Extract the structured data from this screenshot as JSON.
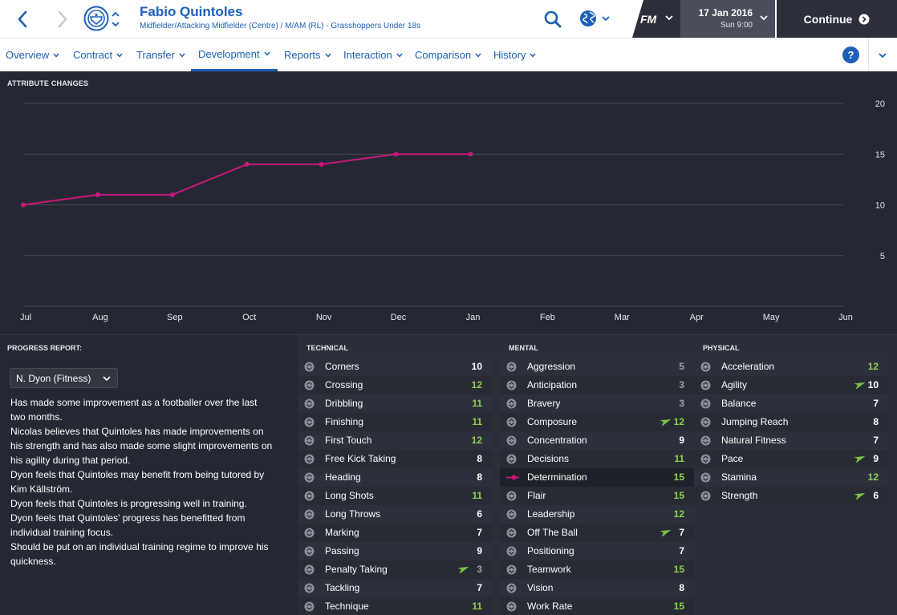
{
  "header": {
    "player_name": "Fabio Quintoles",
    "player_subtitle": "Midfielder/Attacking Midfielder (Centre) / M/AM (RL) - Grasshoppers Under 18s",
    "date": "17 Jan 2016",
    "time": "Sun 9:00",
    "fm_logo": "FM",
    "continue_label": "Continue"
  },
  "tabs": [
    {
      "label": "Overview"
    },
    {
      "label": "Contract"
    },
    {
      "label": "Transfer"
    },
    {
      "label": "Development"
    },
    {
      "label": "Reports"
    },
    {
      "label": "Interaction"
    },
    {
      "label": "Comparison"
    },
    {
      "label": "History"
    }
  ],
  "active_tab": "Development",
  "help_label": "?",
  "colors": {
    "accent": "#1d5fb8",
    "series": "#c8187c",
    "value_green": "#8fd14f",
    "value_white": "#ffffff",
    "value_gray": "#9ea3ad",
    "trend_up": "#7cc544"
  },
  "chart_data": {
    "type": "line",
    "title": "ATTRIBUTE CHANGES",
    "x": [
      "Jul",
      "Aug",
      "Sep",
      "Oct",
      "Nov",
      "Dec",
      "Jan",
      "Feb",
      "Mar",
      "Apr",
      "May",
      "Jun"
    ],
    "series": [
      {
        "values": [
          10,
          11,
          11,
          14,
          14,
          15,
          15,
          null,
          null,
          null,
          null,
          null
        ]
      }
    ],
    "yticks": [
      5,
      10,
      15,
      20
    ],
    "ylim": [
      0,
      20
    ],
    "grid": true
  },
  "progress": {
    "title": "PROGRESS REPORT:",
    "coach": "N. Dyon (Fitness)",
    "lines": [
      "Has made some improvement as a footballer over the last",
      "two months.",
      "Nicolas believes that Quintoles has made improvements on",
      "his strength and has also made some slight improvements on",
      "his agility during that period.",
      "Dyon feels that Quintoles may benefit from being tutored by",
      "Kim Källström.",
      "Dyon feels that Quintoles is progressing well in training.",
      "Dyon feels that Quintoles' progress has benefitted from",
      "individual training focus.",
      "Should be put on an individual training regime to improve his",
      "quickness."
    ]
  },
  "attributes": {
    "technical": {
      "title": "TECHNICAL",
      "rows": [
        {
          "name": "Corners",
          "value": "10",
          "tone": "white"
        },
        {
          "name": "Crossing",
          "value": "12",
          "tone": "green"
        },
        {
          "name": "Dribbling",
          "value": "11",
          "tone": "green"
        },
        {
          "name": "Finishing",
          "value": "11",
          "tone": "green"
        },
        {
          "name": "First Touch",
          "value": "12",
          "tone": "green"
        },
        {
          "name": "Free Kick Taking",
          "value": "8",
          "tone": "white"
        },
        {
          "name": "Heading",
          "value": "8",
          "tone": "white"
        },
        {
          "name": "Long Shots",
          "value": "11",
          "tone": "green"
        },
        {
          "name": "Long Throws",
          "value": "6",
          "tone": "white"
        },
        {
          "name": "Marking",
          "value": "7",
          "tone": "white"
        },
        {
          "name": "Passing",
          "value": "9",
          "tone": "white"
        },
        {
          "name": "Penalty Taking",
          "value": "3",
          "tone": "gray",
          "trend": "up"
        },
        {
          "name": "Tackling",
          "value": "7",
          "tone": "white"
        },
        {
          "name": "Technique",
          "value": "11",
          "tone": "green"
        }
      ]
    },
    "mental": {
      "title": "MENTAL",
      "rows": [
        {
          "name": "Aggression",
          "value": "5",
          "tone": "gray"
        },
        {
          "name": "Anticipation",
          "value": "3",
          "tone": "gray"
        },
        {
          "name": "Bravery",
          "value": "3",
          "tone": "gray"
        },
        {
          "name": "Composure",
          "value": "12",
          "tone": "green",
          "trend": "up"
        },
        {
          "name": "Concentration",
          "value": "9",
          "tone": "white"
        },
        {
          "name": "Decisions",
          "value": "11",
          "tone": "green"
        },
        {
          "name": "Determination",
          "value": "15",
          "tone": "green",
          "highlight": true
        },
        {
          "name": "Flair",
          "value": "15",
          "tone": "green"
        },
        {
          "name": "Leadership",
          "value": "12",
          "tone": "green"
        },
        {
          "name": "Off The Ball",
          "value": "7",
          "tone": "white",
          "trend": "up"
        },
        {
          "name": "Positioning",
          "value": "7",
          "tone": "white"
        },
        {
          "name": "Teamwork",
          "value": "15",
          "tone": "green"
        },
        {
          "name": "Vision",
          "value": "8",
          "tone": "white"
        },
        {
          "name": "Work Rate",
          "value": "15",
          "tone": "green"
        }
      ]
    },
    "physical": {
      "title": "PHYSICAL",
      "rows": [
        {
          "name": "Acceleration",
          "value": "12",
          "tone": "green"
        },
        {
          "name": "Agility",
          "value": "10",
          "tone": "white",
          "trend": "up"
        },
        {
          "name": "Balance",
          "value": "7",
          "tone": "white"
        },
        {
          "name": "Jumping Reach",
          "value": "8",
          "tone": "white"
        },
        {
          "name": "Natural Fitness",
          "value": "7",
          "tone": "white"
        },
        {
          "name": "Pace",
          "value": "9",
          "tone": "white",
          "trend": "up"
        },
        {
          "name": "Stamina",
          "value": "12",
          "tone": "green"
        },
        {
          "name": "Strength",
          "value": "6",
          "tone": "white",
          "trend": "up"
        }
      ]
    }
  },
  "icons": {
    "back": "chevron-left-icon",
    "forward": "chevron-right-icon",
    "club": "club-badge-icon",
    "search": "search-icon",
    "globe": "globe-icon",
    "continue": "arrow-circle-right-icon",
    "row": "toggle-circle-icon",
    "trend": "trend-up-arrow-icon"
  }
}
